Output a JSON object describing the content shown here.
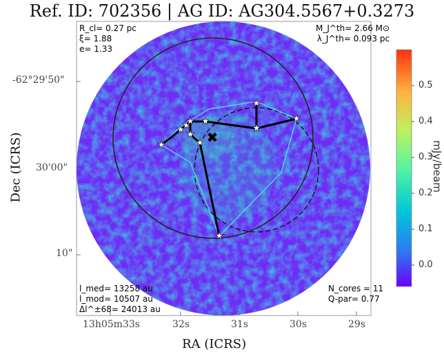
{
  "title": "Ref. ID: 702356 | AG ID: AG304.5567+0.3273",
  "annotations": {
    "top_left": [
      "R_cl= 0.27 pc",
      "ξ= 1.88",
      "e= 1.33"
    ],
    "top_right": [
      "M_J^th= 2.66 M⊙",
      "λ_J^th= 0.093 pc"
    ],
    "bottom_left": [
      "l_med= 13258 au",
      "l_mod= 10507 au",
      "Δl^±68= 24013 au"
    ],
    "bottom_right": [
      "N_cores = 11",
      "Q-par= 0.77"
    ]
  },
  "axes": {
    "xlabel": "RA (ICRS)",
    "ylabel": "Dec (ICRS)",
    "xticks": [
      "13h05m33s",
      "32s",
      "31s",
      "30s",
      "29s"
    ],
    "yticks": [
      "-62°29'50\"",
      "30'00\"",
      "10\""
    ]
  },
  "colorbar": {
    "label": "mJy/beam",
    "ticks": [
      "0.5",
      "0.4",
      "0.3",
      "0.2",
      "0.1",
      "0.0"
    ],
    "colormap": "rainbow",
    "colors": [
      "#6a00ff",
      "#2c7bf2",
      "#00c8d8",
      "#55f5a0",
      "#c0f060",
      "#ffb340",
      "#ff3010"
    ]
  },
  "overlay": {
    "mst_color": "#000000",
    "hull_color": "#4fd6e6",
    "circle_color": "#222222",
    "core_count": 11
  }
}
